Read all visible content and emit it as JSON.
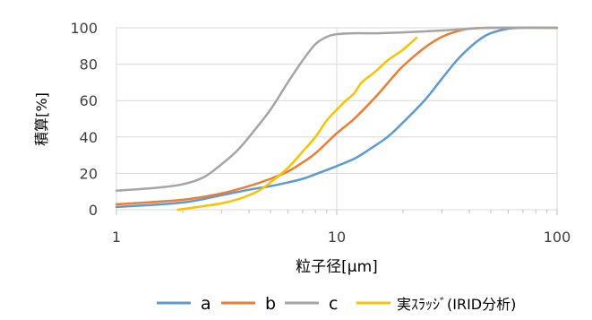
{
  "chart_data": {
    "type": "line",
    "xlabel": "粒子径[μm]",
    "ylabel": "積算[%]",
    "x_scale": "log",
    "xlim": [
      1,
      100
    ],
    "ylim": [
      0,
      100
    ],
    "x_ticks": [
      {
        "value": 1,
        "label": "1"
      },
      {
        "value": 10,
        "label": "10"
      },
      {
        "value": 100,
        "label": "100"
      }
    ],
    "y_ticks": [
      {
        "value": 0,
        "label": "0"
      },
      {
        "value": 20,
        "label": "20"
      },
      {
        "value": 40,
        "label": "40"
      },
      {
        "value": 60,
        "label": "60"
      },
      {
        "value": 80,
        "label": "80"
      },
      {
        "value": 100,
        "label": "100"
      }
    ],
    "grid": true,
    "legend_position": "bottom",
    "series": [
      {
        "name": "a",
        "color": "#5b9bd5",
        "points": [
          [
            1,
            1.5
          ],
          [
            2,
            4
          ],
          [
            3,
            8
          ],
          [
            4,
            11
          ],
          [
            5,
            13
          ],
          [
            6,
            15
          ],
          [
            7,
            17
          ],
          [
            8,
            19.5
          ],
          [
            10,
            24
          ],
          [
            12,
            28
          ],
          [
            14,
            33
          ],
          [
            17,
            40
          ],
          [
            20,
            48
          ],
          [
            25,
            60
          ],
          [
            30,
            72
          ],
          [
            35,
            82
          ],
          [
            40,
            89
          ],
          [
            45,
            94
          ],
          [
            50,
            97
          ],
          [
            60,
            99.5
          ],
          [
            70,
            100
          ],
          [
            100,
            100
          ]
        ]
      },
      {
        "name": "b",
        "color": "#ed7d31",
        "points": [
          [
            1,
            3
          ],
          [
            2,
            5.5
          ],
          [
            3,
            9
          ],
          [
            4,
            13
          ],
          [
            5,
            17
          ],
          [
            6,
            21
          ],
          [
            7,
            26
          ],
          [
            8,
            31
          ],
          [
            10,
            42
          ],
          [
            12,
            50
          ],
          [
            15,
            62
          ],
          [
            18,
            73
          ],
          [
            20,
            79
          ],
          [
            25,
            89
          ],
          [
            30,
            95
          ],
          [
            35,
            98
          ],
          [
            40,
            99.5
          ],
          [
            50,
            100
          ],
          [
            100,
            100
          ]
        ]
      },
      {
        "name": "c",
        "color": "#a5a5a5",
        "points": [
          [
            1,
            10.5
          ],
          [
            1.5,
            12
          ],
          [
            2,
            14
          ],
          [
            2.5,
            18
          ],
          [
            3,
            25
          ],
          [
            3.5,
            32
          ],
          [
            4,
            40
          ],
          [
            5,
            55
          ],
          [
            6,
            70
          ],
          [
            7,
            82
          ],
          [
            8,
            91
          ],
          [
            9,
            95
          ],
          [
            10,
            96.5
          ],
          [
            12,
            97
          ],
          [
            15,
            97
          ],
          [
            20,
            97.5
          ],
          [
            30,
            98.5
          ],
          [
            40,
            99.5
          ],
          [
            50,
            100
          ],
          [
            100,
            100
          ]
        ]
      },
      {
        "name": "実ｽﾗｯｼﾞ(IRID分析)",
        "color": "#ffc000",
        "points": [
          [
            1.9,
            0
          ],
          [
            2.5,
            2
          ],
          [
            3,
            3.5
          ],
          [
            3.5,
            5.5
          ],
          [
            4,
            8
          ],
          [
            4.5,
            11
          ],
          [
            5,
            15
          ],
          [
            6,
            23
          ],
          [
            7,
            32
          ],
          [
            8,
            40
          ],
          [
            9,
            49
          ],
          [
            10,
            55
          ],
          [
            11,
            60
          ],
          [
            12,
            64
          ],
          [
            13,
            70
          ],
          [
            15,
            76
          ],
          [
            17,
            82
          ],
          [
            20,
            88
          ],
          [
            23,
            94.5
          ]
        ]
      }
    ]
  }
}
